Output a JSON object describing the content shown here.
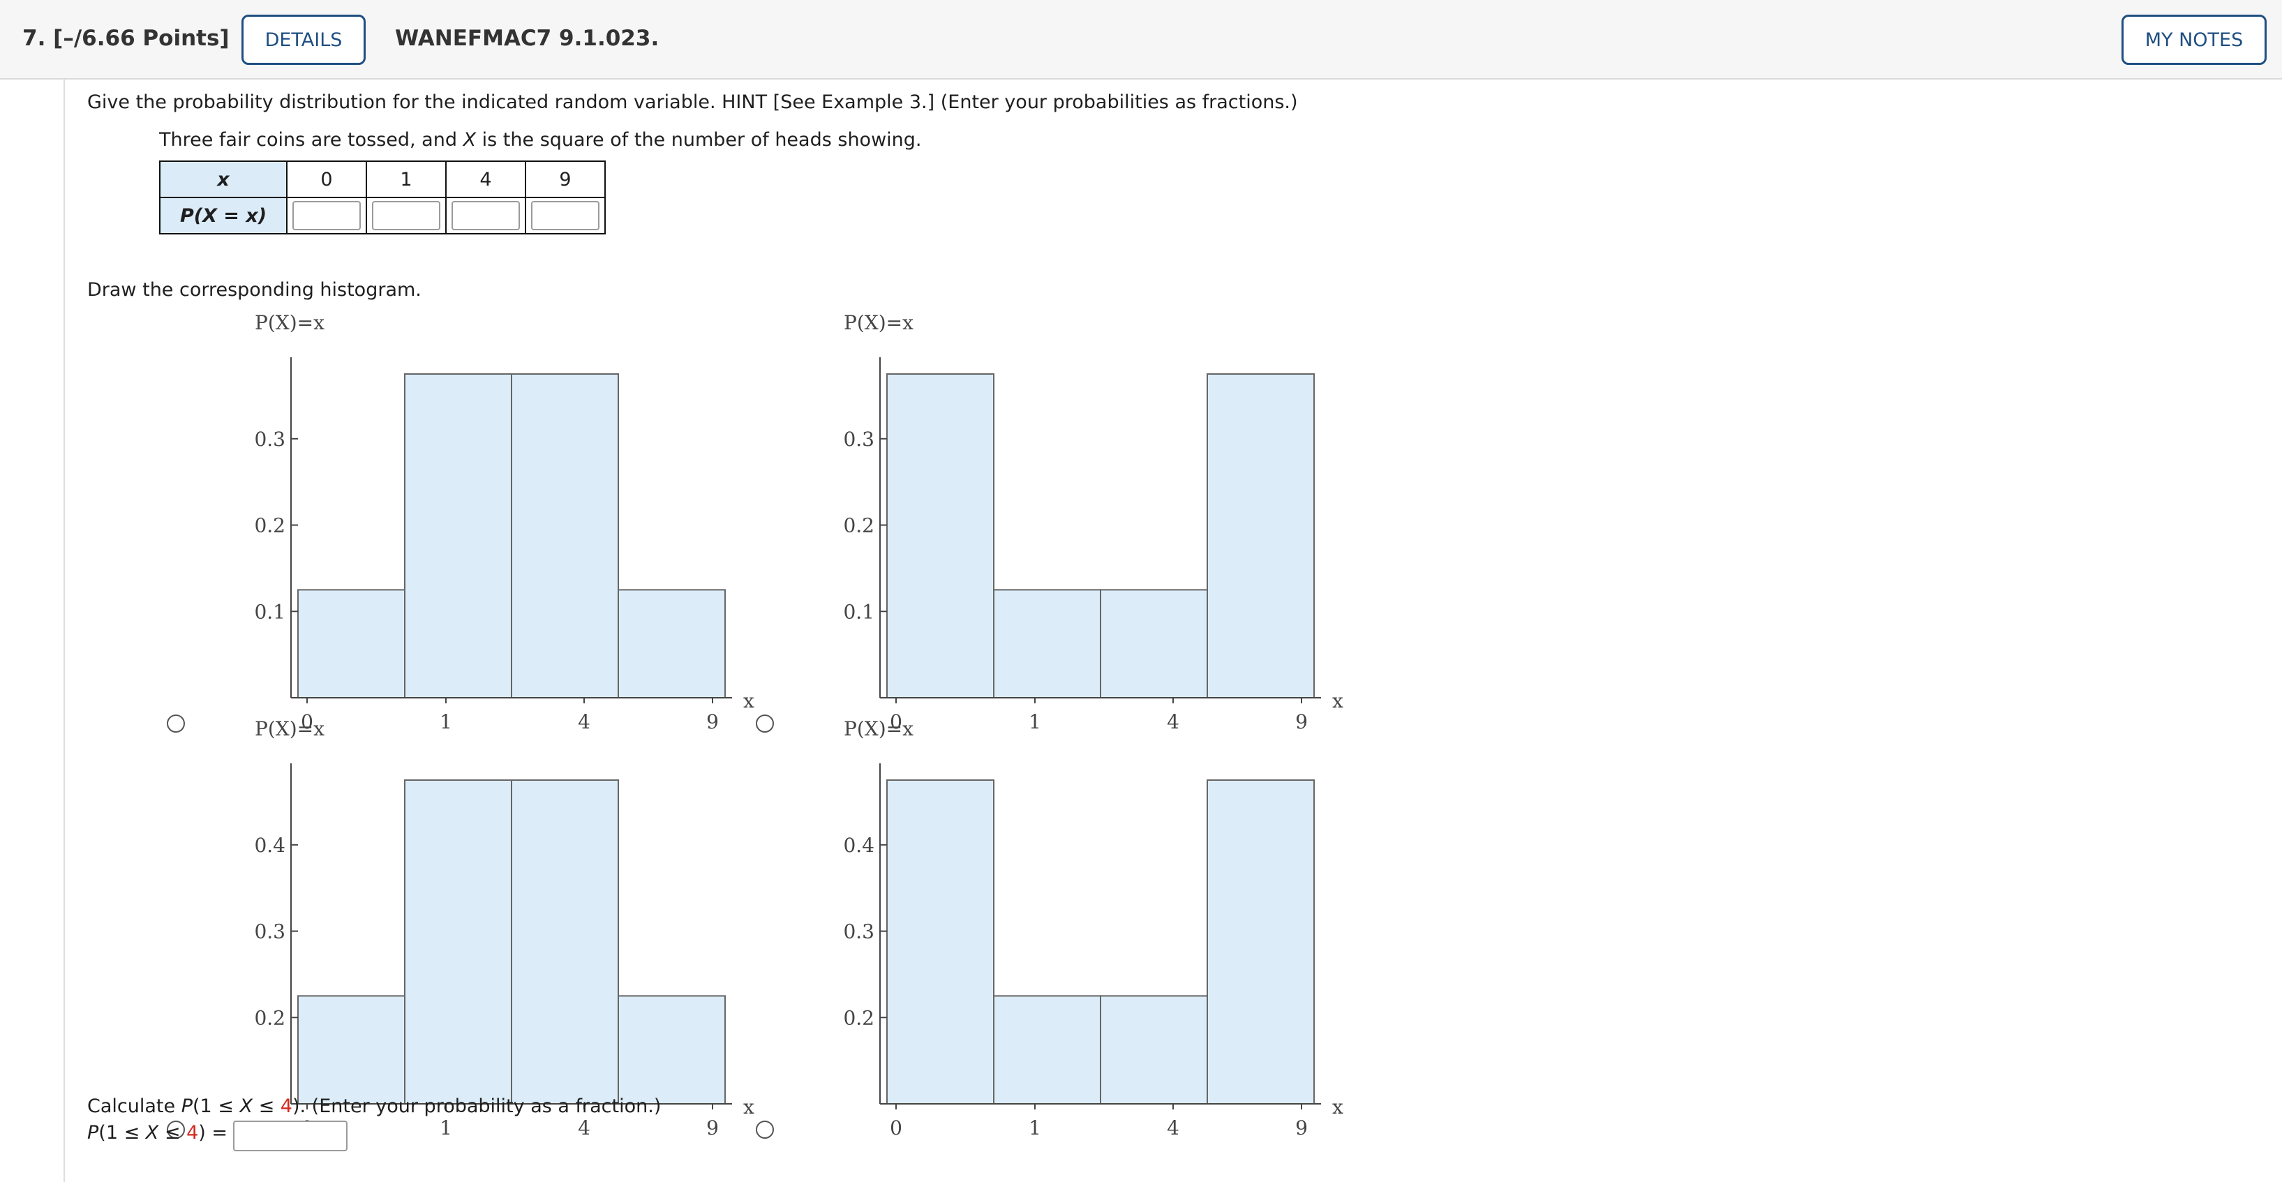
{
  "header": {
    "question_number": "7.",
    "points": "[–/6.66 Points]",
    "details_label": "DETAILS",
    "question_code": "WANEFMAC7 9.1.023.",
    "notes_label": "MY NOTES"
  },
  "question": {
    "instruction": "Give the probability distribution for the indicated random variable. HINT [See Example 3.] (Enter your probabilities as fractions.)",
    "setup_part1": "Three fair coins are tossed, and ",
    "setup_var": "X",
    "setup_part2": " is the square of the number of heads showing.",
    "table": {
      "row1_header": "x",
      "row2_header": "P(X = x)",
      "x_values": [
        "0",
        "1",
        "4",
        "9"
      ]
    },
    "histogram_prompt": "Draw the corresponding histogram.",
    "calc_prompt": {
      "pre": "Calculate ",
      "expr_a": "P",
      "expr_b": "(1 ≤ ",
      "expr_var": "X",
      "expr_c": " ≤ ",
      "expr_red": "4",
      "expr_d": ").",
      "post": " (Enter your probability as a fraction.)"
    },
    "calc_line": {
      "a": "P",
      "b": "(1 ≤ ",
      "var": "X",
      "c": " ≤ ",
      "red": "4",
      "d": ") ="
    }
  },
  "colors": {
    "accent": "#1f4f82",
    "bar_fill": "#dcedf9",
    "table_header": "#dcebf8",
    "highlight": "#d42a1e"
  },
  "chart_data": [
    {
      "type": "bar",
      "title": "",
      "ylabel": "P(X)=x",
      "xlabel": "x",
      "categories": [
        "0",
        "1",
        "4",
        "9"
      ],
      "values": [
        0.125,
        0.375,
        0.375,
        0.125
      ],
      "yticks": [
        0.1,
        0.2,
        0.3
      ],
      "ylim": [
        0,
        0.4
      ]
    },
    {
      "type": "bar",
      "title": "",
      "ylabel": "P(X)=x",
      "xlabel": "x",
      "categories": [
        "0",
        "1",
        "4",
        "9"
      ],
      "values": [
        0.375,
        0.125,
        0.125,
        0.375
      ],
      "yticks": [
        0.1,
        0.2,
        0.3
      ],
      "ylim": [
        0,
        0.4
      ]
    },
    {
      "type": "bar",
      "title": "",
      "ylabel": "P(X)=x",
      "xlabel": "x",
      "categories": [
        "0",
        "1",
        "4",
        "9"
      ],
      "values": [
        0.225,
        0.475,
        0.475,
        0.225
      ],
      "yticks": [
        0.2,
        0.3,
        0.4
      ],
      "ylim": [
        0.1,
        0.5
      ]
    },
    {
      "type": "bar",
      "title": "",
      "ylabel": "P(X)=x",
      "xlabel": "x",
      "categories": [
        "0",
        "1",
        "4",
        "9"
      ],
      "values": [
        0.475,
        0.225,
        0.225,
        0.475
      ],
      "yticks": [
        0.2,
        0.3,
        0.4
      ],
      "ylim": [
        0.1,
        0.5
      ]
    }
  ]
}
